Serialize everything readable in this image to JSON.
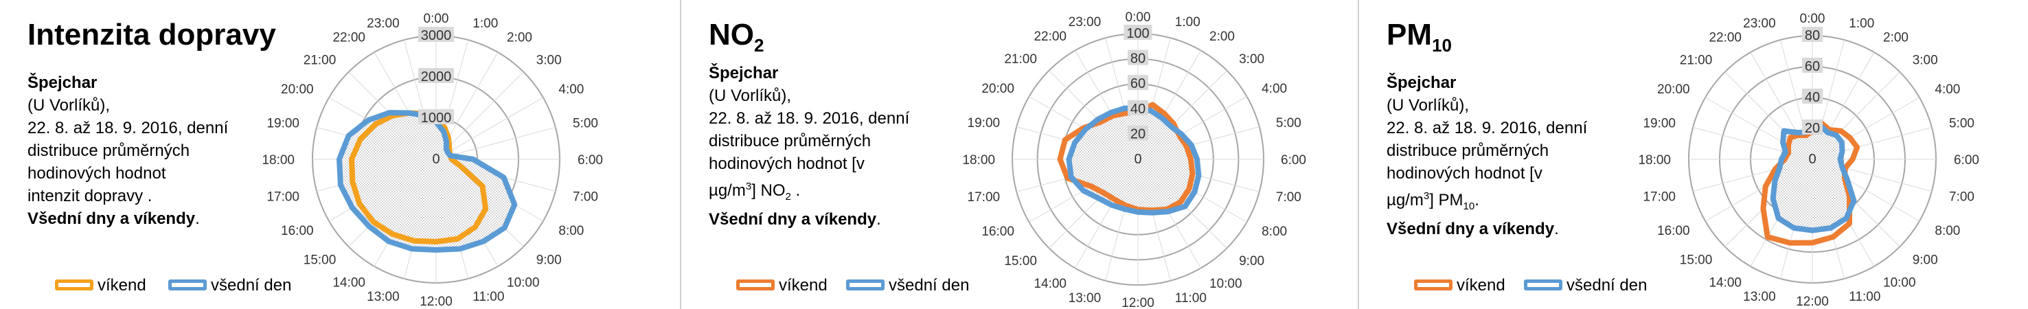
{
  "panels": [
    {
      "title": "Intenzita dopravy",
      "title_sub": "",
      "desc": {
        "site": "Špejchar",
        "l1": "(U Vorlíků),",
        "l2": "22. 8. až 18. 9. 2016, denní",
        "l3": "distribuce průměrných",
        "l4": "hodinových hodnot",
        "l5": "intenzit dopravy .",
        "l5_sup": "",
        "l5_sub": "",
        "l5_tail": "",
        "bold": "Všední dny a víkendy"
      },
      "legend": [
        {
          "label": "víkend",
          "color": "#f4a11e"
        },
        {
          "label": "všední den",
          "color": "#5b9bd5"
        }
      ]
    },
    {
      "title": "NO",
      "title_sub": "2",
      "desc": {
        "site": "Špejchar",
        "l1": "(U Vorlíků),",
        "l2": "22. 8. až 18. 9. 2016, denní",
        "l3": "distribuce průměrných",
        "l4": "hodinových hodnot  [v",
        "l5": "µg/m",
        "l5_sup": "3",
        "l5_tail": "] NO",
        "l5_sub": "2",
        "l5_end": " .",
        "bold": "Všední dny a víkendy"
      },
      "legend": [
        {
          "label": "víkend",
          "color": "#ed7d31"
        },
        {
          "label": "všední den",
          "color": "#5b9bd5"
        }
      ]
    },
    {
      "title": "PM",
      "title_sub": "10",
      "desc": {
        "site": "Špejchar",
        "l1": "(U Vorlíků),",
        "l2": "22. 8. až 18. 9. 2016, denní",
        "l3": "distribuce průměrných",
        "l4": "hodinových hodnot  [v",
        "l5": "µg/m",
        "l5_sup": "3",
        "l5_tail": "] PM",
        "l5_sub": "10",
        "l5_end": ".",
        "bold": "Všední dny a víkendy"
      },
      "legend": [
        {
          "label": "víkend",
          "color": "#ed7d31"
        },
        {
          "label": "všední den",
          "color": "#5b9bd5"
        }
      ]
    }
  ],
  "chart_data": [
    {
      "type": "radar",
      "categories": [
        "1:00",
        "2:00",
        "3:00",
        "4:00",
        "5:00",
        "6:00",
        "7:00",
        "8:00",
        "9:00",
        "10:00",
        "11:00",
        "12:00",
        "13:00",
        "14:00",
        "15:00",
        "16:00",
        "17:00",
        "18:00",
        "19:00",
        "20:00",
        "21:00",
        "22:00",
        "23:00",
        "0:00"
      ],
      "r_ticks": [
        "0",
        "1000",
        "2000",
        "3000"
      ],
      "rlim": [
        0,
        3000
      ],
      "series": [
        {
          "name": "víkend",
          "color": "#f4a11e",
          "values": [
            800,
            600,
            450,
            380,
            350,
            380,
            600,
            1300,
            1700,
            1900,
            2000,
            2000,
            2050,
            2100,
            2150,
            2150,
            2100,
            2050,
            1900,
            1700,
            1500,
            1300,
            1150,
            950
          ]
        },
        {
          "name": "všední den",
          "color": "#5b9bd5",
          "values": [
            700,
            500,
            350,
            330,
            350,
            900,
            1700,
            2200,
            2350,
            2300,
            2250,
            2200,
            2250,
            2300,
            2300,
            2350,
            2400,
            2350,
            2200,
            1900,
            1600,
            1300,
            1100,
            900
          ]
        }
      ]
    },
    {
      "type": "radar",
      "categories": [
        "1:00",
        "2:00",
        "3:00",
        "4:00",
        "5:00",
        "6:00",
        "7:00",
        "8:00",
        "9:00",
        "10:00",
        "11:00",
        "12:00",
        "13:00",
        "14:00",
        "15:00",
        "16:00",
        "17:00",
        "18:00",
        "19:00",
        "20:00",
        "21:00",
        "22:00",
        "23:00",
        "0:00"
      ],
      "r_ticks": [
        "0",
        "20",
        "40",
        "60",
        "80",
        "100"
      ],
      "rlim": [
        0,
        100
      ],
      "series": [
        {
          "name": "víkend",
          "color": "#ed7d31",
          "values": [
            45,
            42,
            40,
            38,
            40,
            42,
            45,
            47,
            48,
            46,
            42,
            40,
            38,
            37,
            38,
            43,
            58,
            62,
            60,
            50,
            42,
            40,
            38,
            38
          ]
        },
        {
          "name": "všední den",
          "color": "#5b9bd5",
          "values": [
            40,
            38,
            37,
            40,
            44,
            47,
            50,
            52,
            53,
            48,
            44,
            42,
            41,
            42,
            44,
            50,
            55,
            55,
            52,
            48,
            45,
            43,
            42,
            41
          ]
        }
      ]
    },
    {
      "type": "radar",
      "categories": [
        "1:00",
        "2:00",
        "3:00",
        "4:00",
        "5:00",
        "6:00",
        "7:00",
        "8:00",
        "9:00",
        "10:00",
        "11:00",
        "12:00",
        "13:00",
        "14:00",
        "15:00",
        "16:00",
        "17:00",
        "18:00",
        "19:00",
        "20:00",
        "21:00",
        "22:00",
        "23:00",
        "0:00"
      ],
      "r_ticks": [
        "0",
        "20",
        "40",
        "60",
        "80"
      ],
      "rlim": [
        0,
        80
      ],
      "series": [
        {
          "name": "víkend",
          "color": "#ed7d31",
          "values": [
            24,
            22,
            26,
            28,
            30,
            26,
            22,
            24,
            34,
            48,
            52,
            54,
            56,
            58,
            45,
            35,
            25,
            18,
            16,
            18,
            20,
            18,
            16,
            18
          ]
        },
        {
          "name": "všední den",
          "color": "#5b9bd5",
          "values": [
            22,
            20,
            22,
            22,
            20,
            18,
            20,
            26,
            38,
            44,
            46,
            46,
            46,
            44,
            36,
            28,
            22,
            20,
            18,
            22,
            26,
            20,
            18,
            20
          ]
        }
      ]
    }
  ]
}
